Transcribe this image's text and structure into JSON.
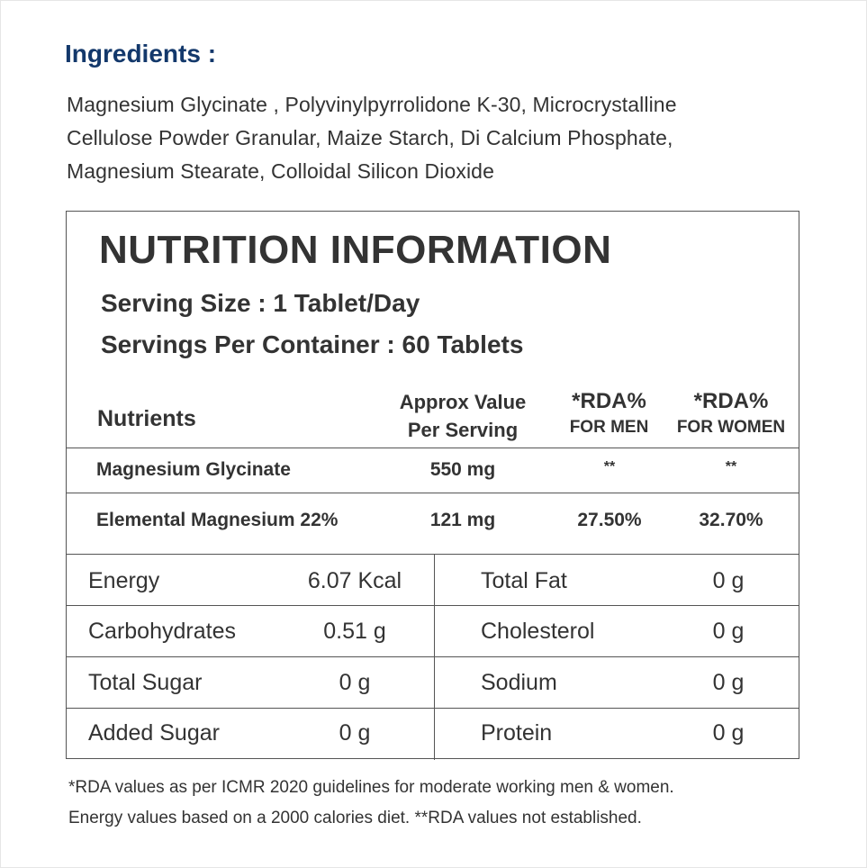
{
  "ingredients": {
    "title": "Ingredients :",
    "lines": [
      "Magnesium Glycinate , Polyvinylpyrrolidone K-30, Microcrystalline",
      "Cellulose Powder Granular, Maize Starch, Di Calcium Phosphate,",
      "Magnesium Stearate, Colloidal Silicon Dioxide"
    ]
  },
  "nutrition": {
    "title": "NUTRITION INFORMATION",
    "serving_size": "Serving Size : 1 Tablet/Day",
    "servings_per_container": "Servings Per Container : 60 Tablets",
    "headers": {
      "nutrients": "Nutrients",
      "approx_line1": "Approx Value",
      "approx_line2": "Per Serving",
      "rda_men_line1": "*RDA%",
      "rda_men_line2": "FOR MEN",
      "rda_women_line1": "*RDA%",
      "rda_women_line2": "FOR WOMEN"
    },
    "rows": [
      {
        "name": "Magnesium Glycinate",
        "value": "550 mg",
        "rda_men": "**",
        "rda_women": "**"
      },
      {
        "name": "Elemental Magnesium 22%",
        "value": "121 mg",
        "rda_men": "27.50%",
        "rda_women": "32.70%"
      }
    ],
    "grid": [
      {
        "left_name": "Energy",
        "left_value": "6.07 Kcal",
        "right_name": "Total Fat",
        "right_value": "0 g"
      },
      {
        "left_name": "Carbohydrates",
        "left_value": "0.51 g",
        "right_name": "Cholesterol",
        "right_value": "0 g"
      },
      {
        "left_name": "Total Sugar",
        "left_value": "0 g",
        "right_name": "Sodium",
        "right_value": "0 g"
      },
      {
        "left_name": "Added Sugar",
        "left_value": "0 g",
        "right_name": "Protein",
        "right_value": "0 g"
      }
    ]
  },
  "footnote": {
    "line1": "*RDA values as per ICMR 2020 guidelines for moderate working men & women.",
    "line2": "Energy values based on a 2000 calories diet. **RDA values not established."
  },
  "colors": {
    "heading_blue": "#13386b",
    "text": "#333333",
    "border": "#555555"
  }
}
